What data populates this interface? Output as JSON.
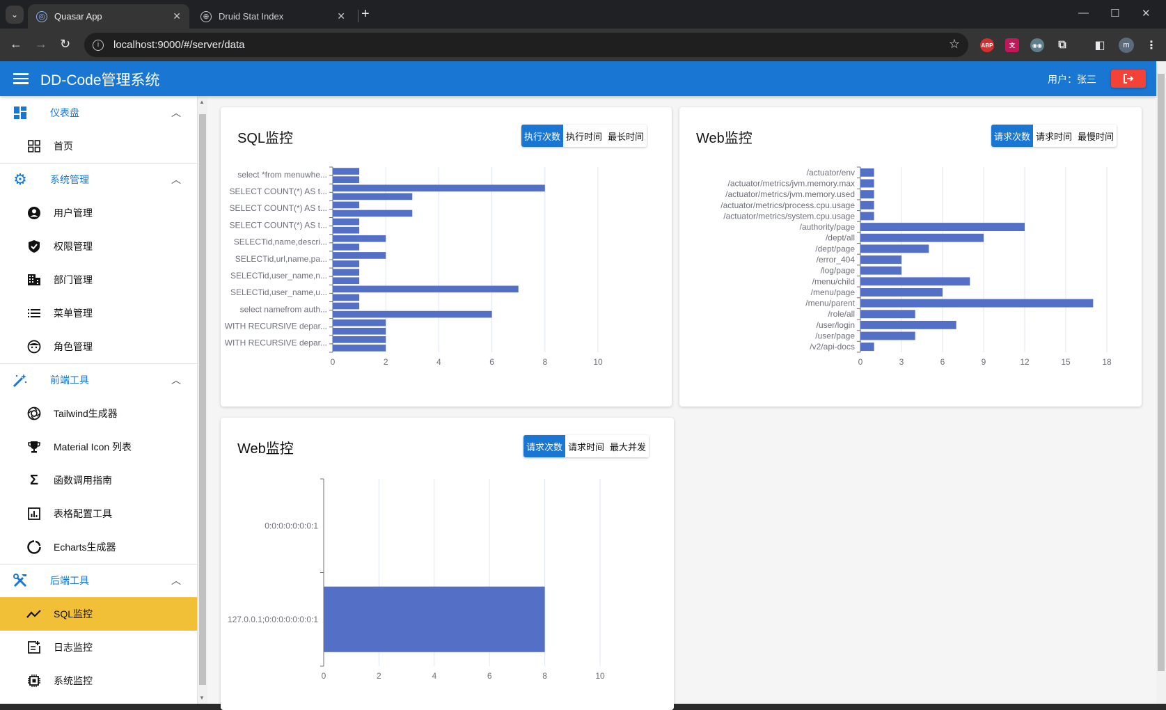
{
  "browser": {
    "tabs": [
      {
        "title": "Quasar App",
        "active": true
      },
      {
        "title": "Druid Stat Index",
        "active": false
      }
    ],
    "url": "localhost:9000/#/server/data",
    "profile_initial": "m"
  },
  "header": {
    "title": "DD-Code管理系统",
    "user_label": "用户：张三"
  },
  "sidebar": {
    "groups": [
      {
        "label": "仪表盘",
        "icon": "dashboard-icon",
        "items": [
          {
            "label": "首页",
            "icon": "grid-icon"
          }
        ]
      },
      {
        "label": "系统管理",
        "icon": "gear-icon",
        "items": [
          {
            "label": "用户管理",
            "icon": "account-icon"
          },
          {
            "label": "权限管理",
            "icon": "shield-check-icon"
          },
          {
            "label": "部门管理",
            "icon": "building-icon"
          },
          {
            "label": "菜单管理",
            "icon": "list-icon"
          },
          {
            "label": "角色管理",
            "icon": "face-icon"
          }
        ]
      },
      {
        "label": "前端工具",
        "icon": "magic-wand-icon",
        "items": [
          {
            "label": "Tailwind生成器",
            "icon": "camera-lens-icon"
          },
          {
            "label": "Material Icon 列表",
            "icon": "trophy-icon"
          },
          {
            "label": "函数调用指南",
            "icon": "sigma-icon"
          },
          {
            "label": "表格配置工具",
            "icon": "bar-chart-icon"
          },
          {
            "label": "Echarts生成器",
            "icon": "donut-icon"
          }
        ]
      },
      {
        "label": "后端工具",
        "icon": "tools-icon",
        "items": [
          {
            "label": "SQL监控",
            "icon": "trend-icon",
            "active": true
          },
          {
            "label": "日志监控",
            "icon": "note-add-icon"
          },
          {
            "label": "系统监控",
            "icon": "chip-icon"
          }
        ]
      }
    ]
  },
  "cards": {
    "sql": {
      "title": "SQL监控",
      "buttons": [
        "执行次数",
        "执行时间",
        "最长时间"
      ],
      "selected": 0
    },
    "web1": {
      "title": "Web监控",
      "buttons": [
        "请求次数",
        "请求时间",
        "最慢时间"
      ],
      "selected": 0
    },
    "web2": {
      "title": "Web监控",
      "buttons": [
        "请求次数",
        "请求时间",
        "最大并发"
      ],
      "selected": 0
    }
  },
  "colors": {
    "primary": "#1976d2",
    "bar": "#5470c6",
    "active_nav": "#f2c037",
    "logout": "#f44336"
  },
  "chart_data": [
    {
      "type": "bar",
      "orientation": "horizontal",
      "title": "SQL监控",
      "category_labels": [
        "select *from menuwhe...",
        "SELECT COUNT(*) AS t...",
        "SELECT COUNT(*) AS t...",
        "SELECT COUNT(*) AS t...",
        "SELECTid,name,descri...",
        "SELECTid,url,name,pa...",
        "SELECTid,user_name,n...",
        "SELECTid,user_name,u...",
        "select namefrom auth...",
        "WITH RECURSIVE depar...",
        "WITH RECURSIVE depar..."
      ],
      "values": [
        1,
        1,
        8,
        3,
        1,
        3,
        1,
        1,
        2,
        1,
        2,
        1,
        1,
        1,
        7,
        1,
        1,
        6,
        2,
        2,
        2,
        2
      ],
      "xticks": [
        0,
        2,
        4,
        6,
        8,
        10
      ],
      "xlim": [
        0,
        10
      ]
    },
    {
      "type": "bar",
      "orientation": "horizontal",
      "title": "Web监控",
      "categories": [
        "/actuator/env",
        "/actuator/metrics/jvm.memory.max",
        "/actuator/metrics/jvm.memory.used",
        "/actuator/metrics/process.cpu.usage",
        "/actuator/metrics/system.cpu.usage",
        "/authority/page",
        "/dept/all",
        "/dept/page",
        "/error_404",
        "/log/page",
        "/menu/child",
        "/menu/page",
        "/menu/parent",
        "/role/all",
        "/user/login",
        "/user/page",
        "/v2/api-docs"
      ],
      "values": [
        1,
        1,
        1,
        1,
        1,
        12,
        9,
        5,
        3,
        3,
        8,
        6,
        17,
        4,
        7,
        4,
        1
      ],
      "xticks": [
        0,
        3,
        6,
        9,
        12,
        15,
        18
      ],
      "xlim": [
        0,
        18
      ]
    },
    {
      "type": "bar",
      "orientation": "horizontal",
      "title": "Web监控",
      "categories": [
        "0:0:0:0:0:0:0:1",
        "127.0.0.1;0:0:0:0:0:0:0:1"
      ],
      "values": [
        0,
        8
      ],
      "xticks": [
        0,
        2,
        4,
        6,
        8,
        10
      ],
      "xlim": [
        0,
        10
      ]
    }
  ]
}
